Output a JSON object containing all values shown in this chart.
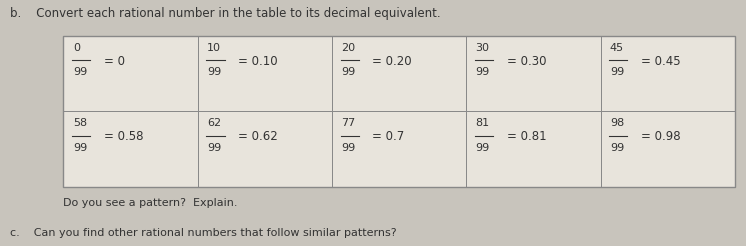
{
  "title_b": "b.    Convert each rational number in the table to its decimal equivalent.",
  "footer_pattern": "Do you see a pattern?  Explain.",
  "footer_c": "c.    Can you find other rational numbers that follow similar patterns?",
  "border_color": "#888888",
  "text_color": "#333333",
  "bg_color": "#c8c4bc",
  "cell_bg": "#e8e4dc",
  "row1": [
    {
      "numerator": "0",
      "denominator": "99",
      "decimal": "= 0"
    },
    {
      "numerator": "10",
      "denominator": "99",
      "decimal": "= 0.10"
    },
    {
      "numerator": "20",
      "denominator": "99",
      "decimal": "= 0.20"
    },
    {
      "numerator": "30",
      "denominator": "99",
      "decimal": "= 0.30"
    },
    {
      "numerator": "45",
      "denominator": "99",
      "decimal": "= 0.45"
    }
  ],
  "row2": [
    {
      "numerator": "58",
      "denominator": "99",
      "decimal": "= 0.58"
    },
    {
      "numerator": "62",
      "denominator": "99",
      "decimal": "= 0.62"
    },
    {
      "numerator": "77",
      "denominator": "99",
      "decimal": "= 0.7"
    },
    {
      "numerator": "81",
      "denominator": "99",
      "decimal": "= 0.81"
    },
    {
      "numerator": "98",
      "denominator": "99",
      "decimal": "= 0.98"
    }
  ],
  "fig_width": 7.46,
  "fig_height": 2.46,
  "dpi": 100
}
